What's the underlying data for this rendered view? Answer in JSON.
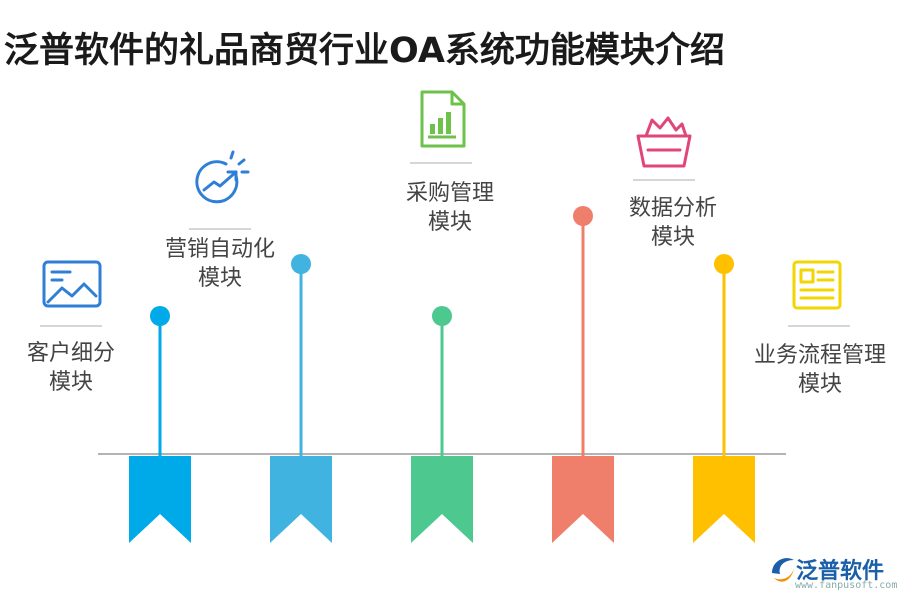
{
  "title": "泛普软件的礼品商贸行业OA系统功能模块介绍",
  "modules": [
    {
      "line1": "客户细分",
      "line2": "模块",
      "color": "#00a9e8",
      "icon": "image-frame-icon"
    },
    {
      "line1": "营销自动化",
      "line2": "模块",
      "color": "#41b3e0",
      "icon": "growth-arrow-icon"
    },
    {
      "line1": "采购管理",
      "line2": "模块",
      "color": "#4dc88e",
      "icon": "document-chart-icon"
    },
    {
      "line1": "数据分析",
      "line2": "模块",
      "color": "#ef7f6a",
      "icon": "basket-icon"
    },
    {
      "line1": "业务流程管理",
      "line2": "模块",
      "color": "#ffc000",
      "icon": "notepad-icon"
    }
  ],
  "logo": {
    "text": "泛普软件",
    "url": "www.fanpusoft.com"
  }
}
